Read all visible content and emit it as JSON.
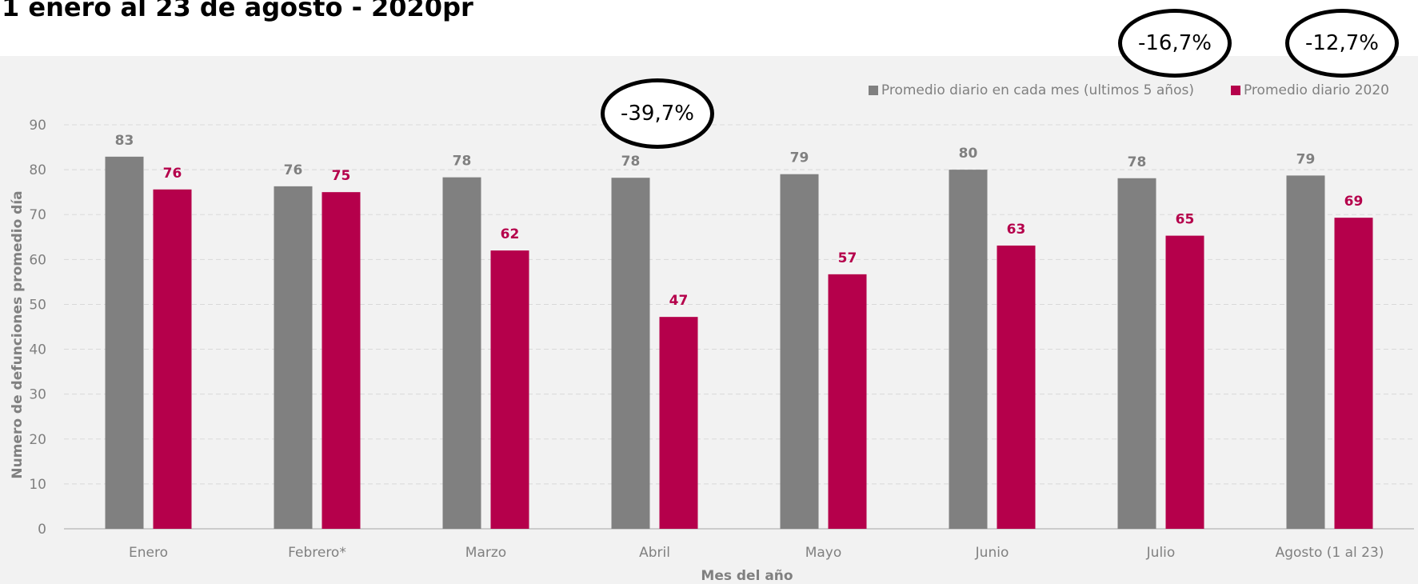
{
  "header": {
    "title": "1 enero al 23 de agosto - 2020pr"
  },
  "colors": {
    "avg5": "#808080",
    "y2020": "#b5004b",
    "grid": "#d9d9d9",
    "background": "#f2f2f2"
  },
  "callouts": [
    {
      "text": "-39,7%"
    },
    {
      "text": "-16,7%"
    },
    {
      "text": "-12,7%"
    }
  ],
  "chart_data": {
    "type": "bar",
    "title": "",
    "xlabel": "Mes del año",
    "ylabel": "Numero de defunciones promedio día",
    "ylim": [
      0,
      90
    ],
    "yticks": [
      0,
      10,
      20,
      30,
      40,
      50,
      60,
      70,
      80,
      90
    ],
    "grid": true,
    "legend_position": "top-right",
    "categories": [
      "Enero",
      "Febrero*",
      "Marzo",
      "Abril",
      "Mayo",
      "Junio",
      "Julio",
      "Agosto (1 al 23)"
    ],
    "series": [
      {
        "name": "Promedio diario en cada mes (ultimos 5 años)",
        "color": "#808080",
        "values": [
          82.9,
          76.3,
          78.3,
          78.2,
          79.0,
          80.0,
          78.1,
          78.7
        ],
        "labels": [
          "83",
          "76",
          "78",
          "78",
          "79",
          "80",
          "78",
          "79"
        ]
      },
      {
        "name": "Promedio diario 2020",
        "color": "#b5004b",
        "values": [
          75.6,
          75.0,
          62.0,
          47.2,
          56.7,
          63.1,
          65.3,
          69.3
        ],
        "labels": [
          "76",
          "75",
          "62",
          "47",
          "57",
          "63",
          "65",
          "69"
        ]
      }
    ]
  }
}
